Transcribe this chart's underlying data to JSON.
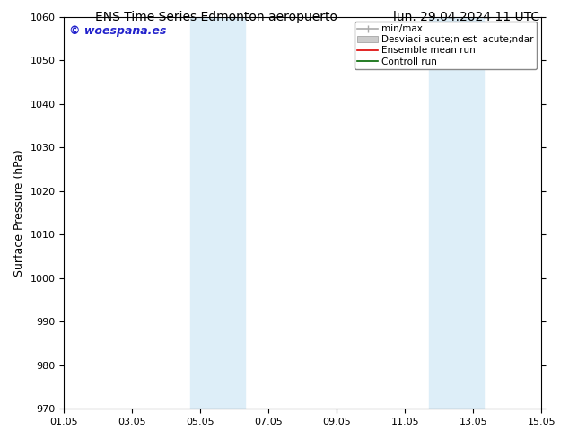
{
  "title_left": "ENS Time Series Edmonton aeropuerto",
  "title_right": "lun. 29.04.2024 11 UTC",
  "ylabel": "Surface Pressure (hPa)",
  "ylim": [
    970,
    1060
  ],
  "yticks": [
    970,
    980,
    990,
    1000,
    1010,
    1020,
    1030,
    1040,
    1050,
    1060
  ],
  "xtick_labels": [
    "01.05",
    "03.05",
    "05.05",
    "07.05",
    "09.05",
    "11.05",
    "13.05",
    "15.05"
  ],
  "xtick_positions": [
    0,
    2,
    4,
    6,
    8,
    10,
    12,
    14
  ],
  "xlim": [
    0,
    14
  ],
  "shaded_bands": [
    {
      "x_start": 3.7,
      "x_end": 5.3
    },
    {
      "x_start": 10.7,
      "x_end": 12.3
    }
  ],
  "shade_color": "#ddeef8",
  "bg_color": "#ffffff",
  "watermark": "© woespana.es",
  "watermark_color": "#2222cc",
  "legend_labels": [
    "min/max",
    "Desviaci acute;n est  acute;ndar",
    "Ensemble mean run",
    "Controll run"
  ],
  "legend_colors": [
    "#aaaaaa",
    "#cccccc",
    "#dd0000",
    "#006600"
  ],
  "title_fontsize": 10,
  "axis_label_fontsize": 9,
  "tick_fontsize": 8,
  "watermark_fontsize": 9,
  "legend_fontsize": 7.5
}
